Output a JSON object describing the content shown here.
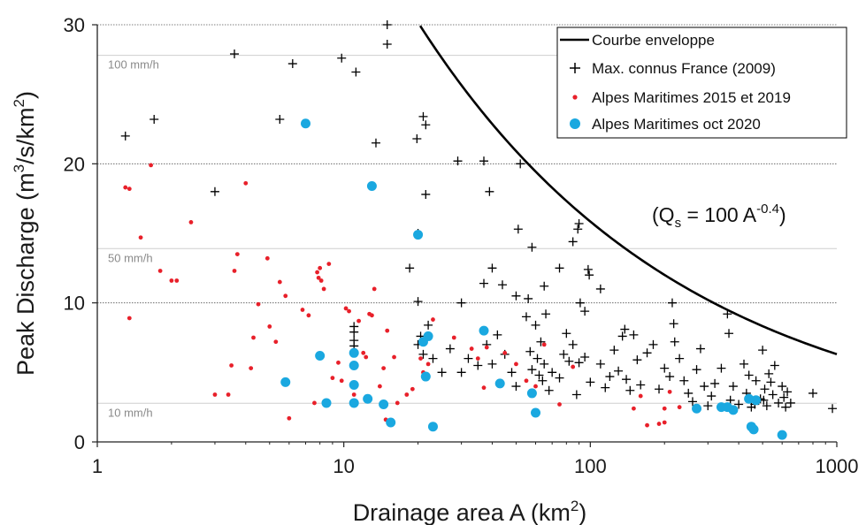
{
  "chart_data": {
    "type": "scatter",
    "title": "",
    "xlabel": "Drainage area A",
    "xlabel_unit": "km",
    "xlabel_unit_sup": "2",
    "ylabel": "Peak Discharge",
    "ylabel_unit": "m",
    "ylabel_unit_sup1": "3",
    "ylabel_unit_mid": "/s/km",
    "ylabel_unit_sup2": "2",
    "xscale": "log",
    "xlim": [
      1,
      1000
    ],
    "ylim": [
      0,
      30
    ],
    "xticks": [
      "1",
      "10",
      "100",
      "1000"
    ],
    "yticks": [
      "0",
      "10",
      "20",
      "30"
    ],
    "grid": "horizontal dotted at y = 10, 20, 30",
    "legend_position": "top-right",
    "reference_lines": [
      {
        "label": "10 mm/h",
        "y": 2.78
      },
      {
        "label": "50 mm/h",
        "y": 13.9
      },
      {
        "label": "100 mm/h",
        "y": 27.8
      }
    ],
    "annotation": {
      "prefix": "(Q",
      "sub": "s",
      "mid": " = 100 A",
      "sup": "-0.4",
      "suffix": ")"
    },
    "series": [
      {
        "name": "Courbe enveloppe",
        "kind": "line",
        "color": "#000000",
        "formula_coefficient": 100,
        "formula_exponent": -0.4
      },
      {
        "name": "Max. connus France (2009)",
        "kind": "plus",
        "color": "#000000",
        "points": [
          [
            1.3,
            22.0
          ],
          [
            1.7,
            23.2
          ],
          [
            3.0,
            18.0
          ],
          [
            3.6,
            27.9
          ],
          [
            5.5,
            23.2
          ],
          [
            6.2,
            27.2
          ],
          [
            9.8,
            27.6
          ],
          [
            11.2,
            26.6
          ],
          [
            15.0,
            30.0
          ],
          [
            15.0,
            28.6
          ],
          [
            13.5,
            21.5
          ],
          [
            19.8,
            21.8
          ],
          [
            21.0,
            23.4
          ],
          [
            21.5,
            22.8
          ],
          [
            21.5,
            17.8
          ],
          [
            29.0,
            20.2
          ],
          [
            37.0,
            20.2
          ],
          [
            39.0,
            18.0
          ],
          [
            52.0,
            20.0
          ],
          [
            51.0,
            15.3
          ],
          [
            20.0,
            15.0
          ],
          [
            18.5,
            12.5
          ],
          [
            20.0,
            10.1
          ],
          [
            30.0,
            10.0
          ],
          [
            37.0,
            11.4
          ],
          [
            40.0,
            12.5
          ],
          [
            44.0,
            11.3
          ],
          [
            50.0,
            10.5
          ],
          [
            56.0,
            10.3
          ],
          [
            58.0,
            14.0
          ],
          [
            65.0,
            11.2
          ],
          [
            75.0,
            12.5
          ],
          [
            85.0,
            14.4
          ],
          [
            89.0,
            15.3
          ],
          [
            90.0,
            15.7
          ],
          [
            91.0,
            10.0
          ],
          [
            98.0,
            12.4
          ],
          [
            99.0,
            12.0
          ],
          [
            110.0,
            11.0
          ],
          [
            95.0,
            9.4
          ],
          [
            11.0,
            8.3
          ],
          [
            11.0,
            7.9
          ],
          [
            11.0,
            7.3
          ],
          [
            11.0,
            6.9
          ],
          [
            20.0,
            7.0
          ],
          [
            20.5,
            7.6
          ],
          [
            21.0,
            6.3
          ],
          [
            22.0,
            8.4
          ],
          [
            23.0,
            6.0
          ],
          [
            25.0,
            5.0
          ],
          [
            27.0,
            6.7
          ],
          [
            30.0,
            5.0
          ],
          [
            32.0,
            6.0
          ],
          [
            35.0,
            5.5
          ],
          [
            38.0,
            7.0
          ],
          [
            40.0,
            5.6
          ],
          [
            42.0,
            7.7
          ],
          [
            45.0,
            6.3
          ],
          [
            48.0,
            5.0
          ],
          [
            50.0,
            4.0
          ],
          [
            55.0,
            9.0
          ],
          [
            57.0,
            6.5
          ],
          [
            58.0,
            5.2
          ],
          [
            60.0,
            8.4
          ],
          [
            61.0,
            6.0
          ],
          [
            62.0,
            4.8
          ],
          [
            63.0,
            7.2
          ],
          [
            64.0,
            4.4
          ],
          [
            65.0,
            5.6
          ],
          [
            66.0,
            9.2
          ],
          [
            68.0,
            3.7
          ],
          [
            70.0,
            5.0
          ],
          [
            75.0,
            4.6
          ],
          [
            78.0,
            6.3
          ],
          [
            80.0,
            7.8
          ],
          [
            82.0,
            5.8
          ],
          [
            85.0,
            7.0
          ],
          [
            88.0,
            3.4
          ],
          [
            90.0,
            5.7
          ],
          [
            95.0,
            6.1
          ],
          [
            100.0,
            4.3
          ],
          [
            110.0,
            5.6
          ],
          [
            115.0,
            3.9
          ],
          [
            120.0,
            4.7
          ],
          [
            125.0,
            6.6
          ],
          [
            130.0,
            5.1
          ],
          [
            135.0,
            7.6
          ],
          [
            138.0,
            8.1
          ],
          [
            140.0,
            4.5
          ],
          [
            145.0,
            3.7
          ],
          [
            150.0,
            7.7
          ],
          [
            155.0,
            5.9
          ],
          [
            160.0,
            4.1
          ],
          [
            170.0,
            6.4
          ],
          [
            180.0,
            7.0
          ],
          [
            190.0,
            3.8
          ],
          [
            200.0,
            5.3
          ],
          [
            210.0,
            4.7
          ],
          [
            215.0,
            10.0
          ],
          [
            218.0,
            8.5
          ],
          [
            220.0,
            7.2
          ],
          [
            230.0,
            6.0
          ],
          [
            240.0,
            4.4
          ],
          [
            250.0,
            3.5
          ],
          [
            260.0,
            2.9
          ],
          [
            270.0,
            5.2
          ],
          [
            280.0,
            6.7
          ],
          [
            290.0,
            4.0
          ],
          [
            300.0,
            2.6
          ],
          [
            310.0,
            3.3
          ],
          [
            320.0,
            4.2
          ],
          [
            340.0,
            5.3
          ],
          [
            360.0,
            9.2
          ],
          [
            365.0,
            7.8
          ],
          [
            370.0,
            3.0
          ],
          [
            380.0,
            4.0
          ],
          [
            400.0,
            2.7
          ],
          [
            420.0,
            5.6
          ],
          [
            430.0,
            3.5
          ],
          [
            440.0,
            4.8
          ],
          [
            450.0,
            2.5
          ],
          [
            470.0,
            4.4
          ],
          [
            490.0,
            3.1
          ],
          [
            500.0,
            6.6
          ],
          [
            510.0,
            3.8
          ],
          [
            520.0,
            2.6
          ],
          [
            530.0,
            4.9
          ],
          [
            550.0,
            3.4
          ],
          [
            560.0,
            5.5
          ],
          [
            580.0,
            2.8
          ],
          [
            600.0,
            4.0
          ],
          [
            610.0,
            3.2
          ],
          [
            620.0,
            2.5
          ],
          [
            630.0,
            3.6
          ],
          [
            650.0,
            2.8
          ],
          [
            800.0,
            3.5
          ],
          [
            960.0,
            2.4
          ],
          [
            540.0,
            4.3
          ],
          [
            505.0,
            3.0
          ],
          [
            465.0,
            2.7
          ]
        ]
      },
      {
        "name": "Alpes Maritimes 2015 et 2019",
        "kind": "dot",
        "color": "#e8202a",
        "points": [
          [
            1.3,
            18.3
          ],
          [
            1.35,
            18.2
          ],
          [
            1.35,
            8.9
          ],
          [
            1.5,
            14.7
          ],
          [
            1.65,
            19.9
          ],
          [
            1.8,
            12.3
          ],
          [
            2.0,
            11.6
          ],
          [
            2.1,
            11.6
          ],
          [
            2.4,
            15.8
          ],
          [
            3.0,
            3.4
          ],
          [
            3.4,
            3.4
          ],
          [
            3.5,
            5.5
          ],
          [
            3.6,
            12.3
          ],
          [
            3.7,
            13.5
          ],
          [
            4.0,
            18.6
          ],
          [
            4.2,
            5.3
          ],
          [
            4.3,
            7.5
          ],
          [
            4.5,
            9.9
          ],
          [
            4.9,
            13.2
          ],
          [
            5.0,
            8.3
          ],
          [
            5.3,
            7.2
          ],
          [
            5.5,
            11.5
          ],
          [
            5.8,
            10.5
          ],
          [
            6.0,
            1.7
          ],
          [
            6.8,
            9.5
          ],
          [
            7.2,
            9.1
          ],
          [
            7.6,
            2.8
          ],
          [
            7.8,
            12.2
          ],
          [
            7.9,
            11.8
          ],
          [
            8.0,
            12.5
          ],
          [
            8.1,
            11.6
          ],
          [
            8.3,
            11.0
          ],
          [
            8.7,
            12.8
          ],
          [
            9.0,
            4.6
          ],
          [
            9.5,
            5.7
          ],
          [
            10.2,
            9.6
          ],
          [
            10.5,
            9.4
          ],
          [
            10.8,
            6.4
          ],
          [
            11.0,
            3.4
          ],
          [
            11.5,
            8.7
          ],
          [
            12.0,
            6.4
          ],
          [
            12.3,
            6.1
          ],
          [
            12.7,
            9.2
          ],
          [
            13.0,
            9.1
          ],
          [
            13.3,
            11.0
          ],
          [
            14.5,
            5.3
          ],
          [
            14.8,
            1.6
          ],
          [
            15.0,
            8.0
          ],
          [
            16.0,
            6.1
          ],
          [
            18.0,
            3.4
          ],
          [
            19.0,
            3.8
          ],
          [
            20.5,
            6.0
          ],
          [
            21.0,
            5.0
          ],
          [
            22.0,
            5.6
          ],
          [
            23.0,
            8.8
          ],
          [
            28.0,
            7.5
          ],
          [
            33.0,
            6.7
          ],
          [
            35.0,
            6.0
          ],
          [
            37.0,
            3.9
          ],
          [
            38.0,
            6.8
          ],
          [
            45.0,
            6.4
          ],
          [
            50.0,
            5.6
          ],
          [
            55.0,
            4.4
          ],
          [
            60.0,
            4.0
          ],
          [
            65.0,
            7.0
          ],
          [
            75.0,
            2.7
          ],
          [
            85.0,
            5.4
          ],
          [
            150.0,
            2.4
          ],
          [
            160.0,
            3.3
          ],
          [
            170.0,
            1.2
          ],
          [
            190.0,
            1.3
          ],
          [
            200.0,
            1.4
          ],
          [
            200.0,
            2.4
          ],
          [
            210.0,
            3.6
          ],
          [
            230.0,
            2.5
          ],
          [
            14.0,
            4.0
          ],
          [
            9.8,
            4.4
          ],
          [
            16.5,
            2.8
          ]
        ]
      },
      {
        "name": "Alpes Maritimes oct 2020",
        "kind": "circle",
        "color": "#1aa8e0",
        "points": [
          [
            7.0,
            22.9
          ],
          [
            13.0,
            18.4
          ],
          [
            20.0,
            14.9
          ],
          [
            5.8,
            4.3
          ],
          [
            8.0,
            6.2
          ],
          [
            8.5,
            2.8
          ],
          [
            11.0,
            6.4
          ],
          [
            11.0,
            5.5
          ],
          [
            11.0,
            4.1
          ],
          [
            11.0,
            2.8
          ],
          [
            12.5,
            3.1
          ],
          [
            14.5,
            2.7
          ],
          [
            15.5,
            1.4
          ],
          [
            21.0,
            7.2
          ],
          [
            21.5,
            4.7
          ],
          [
            22.0,
            7.6
          ],
          [
            23.0,
            1.1
          ],
          [
            37.0,
            8.0
          ],
          [
            43.0,
            4.2
          ],
          [
            58.0,
            3.5
          ],
          [
            60.0,
            2.1
          ],
          [
            270.0,
            2.4
          ],
          [
            340.0,
            2.5
          ],
          [
            360.0,
            2.5
          ],
          [
            380.0,
            2.3
          ],
          [
            440.0,
            3.1
          ],
          [
            450.0,
            1.1
          ],
          [
            460.0,
            0.9
          ],
          [
            600.0,
            0.5
          ],
          [
            470.0,
            3.0
          ]
        ]
      }
    ]
  }
}
